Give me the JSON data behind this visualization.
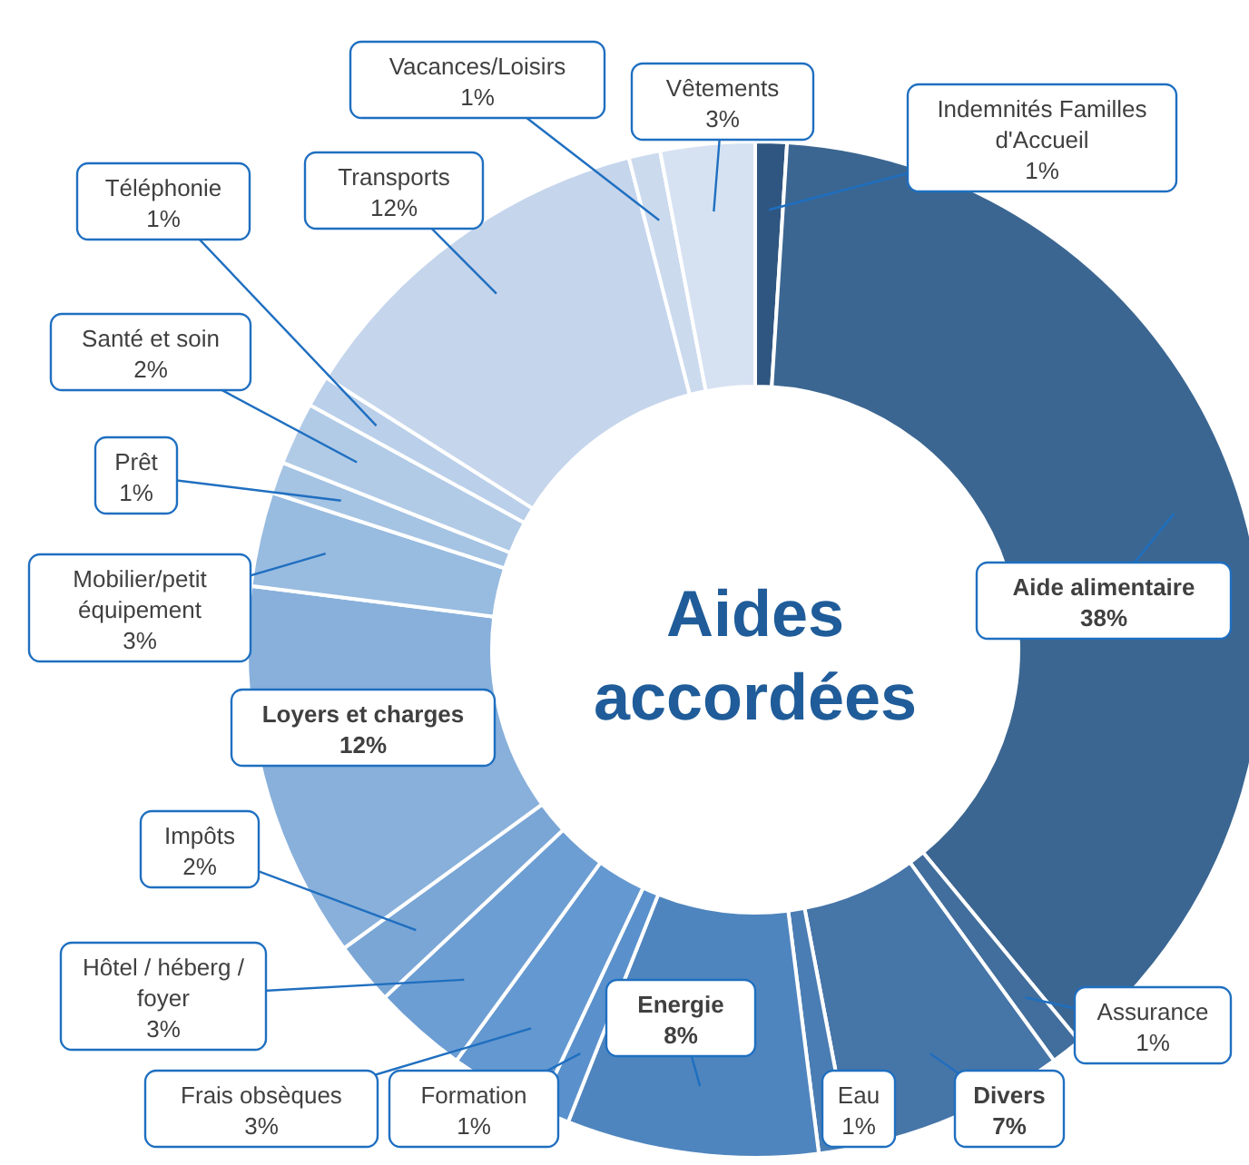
{
  "chart_data": {
    "type": "donut",
    "title": "Aides accordées",
    "categories": [
      "Indemnités Familles d'Accueil",
      "Aide alimentaire",
      "Assurance",
      "Divers",
      "Eau",
      "Energie",
      "Formation",
      "Frais obsèques",
      "Hôtel / héberg / foyer",
      "Impôts",
      "Loyers et charges",
      "Mobilier/petit équipement",
      "Prêt",
      "Santé et soin",
      "Téléphonie",
      "Transports",
      "Vacances/Loisirs",
      "Vêtements"
    ],
    "values": [
      1,
      38,
      1,
      7,
      1,
      8,
      1,
      3,
      3,
      2,
      12,
      3,
      1,
      2,
      1,
      12,
      1,
      3
    ],
    "value_labels": [
      "1%",
      "38%",
      "1%",
      "7%",
      "1%",
      "8%",
      "1%",
      "3%",
      "3%",
      "2%",
      "12%",
      "3%",
      "1%",
      "2%",
      "1%",
      "12%",
      "1%",
      "3%"
    ],
    "colors": [
      "#2f5680",
      "#3b6691",
      "#416e9c",
      "#4675a8",
      "#4a7db3",
      "#4f85be",
      "#5a91cc",
      "#6498d0",
      "#6d9ed3",
      "#7aa6d6",
      "#88b0db",
      "#98bbe0",
      "#a5c3e3",
      "#b1cbe7",
      "#bacfe9",
      "#c5d5ec",
      "#ccdaee",
      "#d6e2f2"
    ]
  }
}
